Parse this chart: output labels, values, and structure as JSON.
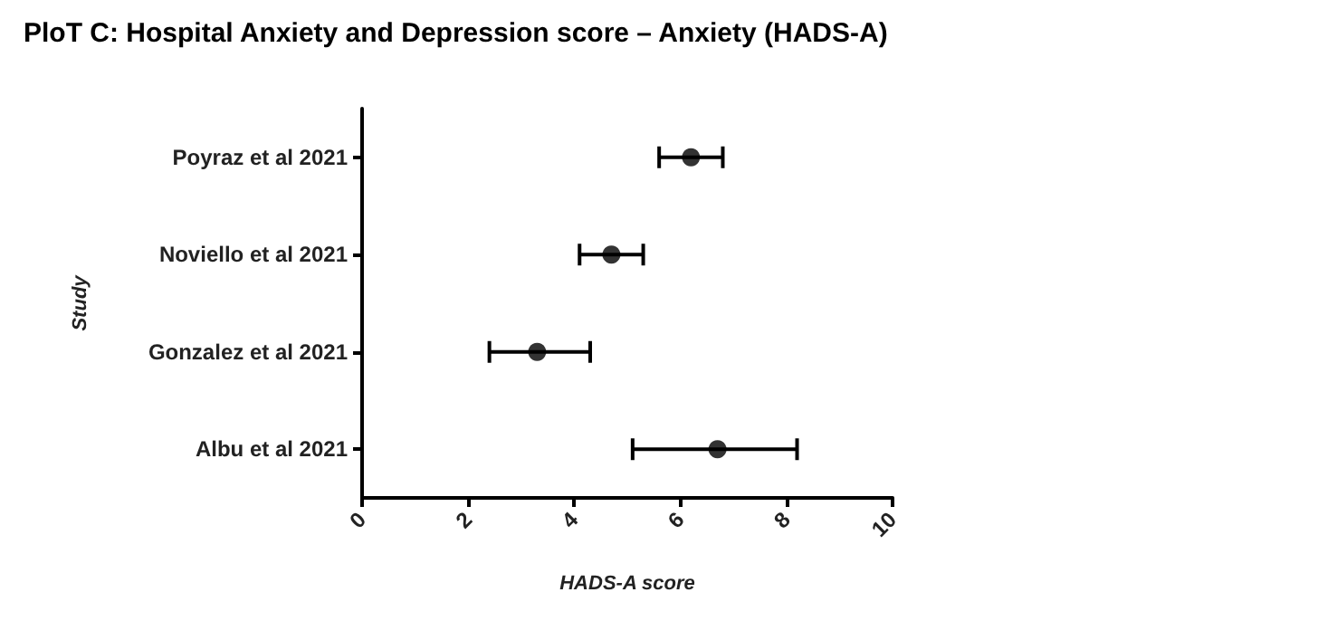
{
  "chart_data": {
    "type": "scatter",
    "orientation": "horizontal",
    "title": "PloT C: Hospital Anxiety and Depression score – Anxiety (HADS-A)",
    "xlabel": "HADS-A score",
    "ylabel": "Study",
    "categories": [
      "Poyraz et al 2021",
      "Noviello et al 2021",
      "Gonzalez et al 2021",
      "Albu et al 2021"
    ],
    "values": [
      6.2,
      4.7,
      3.3,
      6.7
    ],
    "errors": [
      [
        5.6,
        6.8
      ],
      [
        4.1,
        5.3
      ],
      [
        2.4,
        4.3
      ],
      [
        5.1,
        8.2
      ]
    ],
    "color": "#000000",
    "marker": "circle",
    "xlim": [
      0,
      10
    ],
    "xticks": [
      0,
      2,
      4,
      6,
      8,
      10
    ],
    "grid": false
  }
}
